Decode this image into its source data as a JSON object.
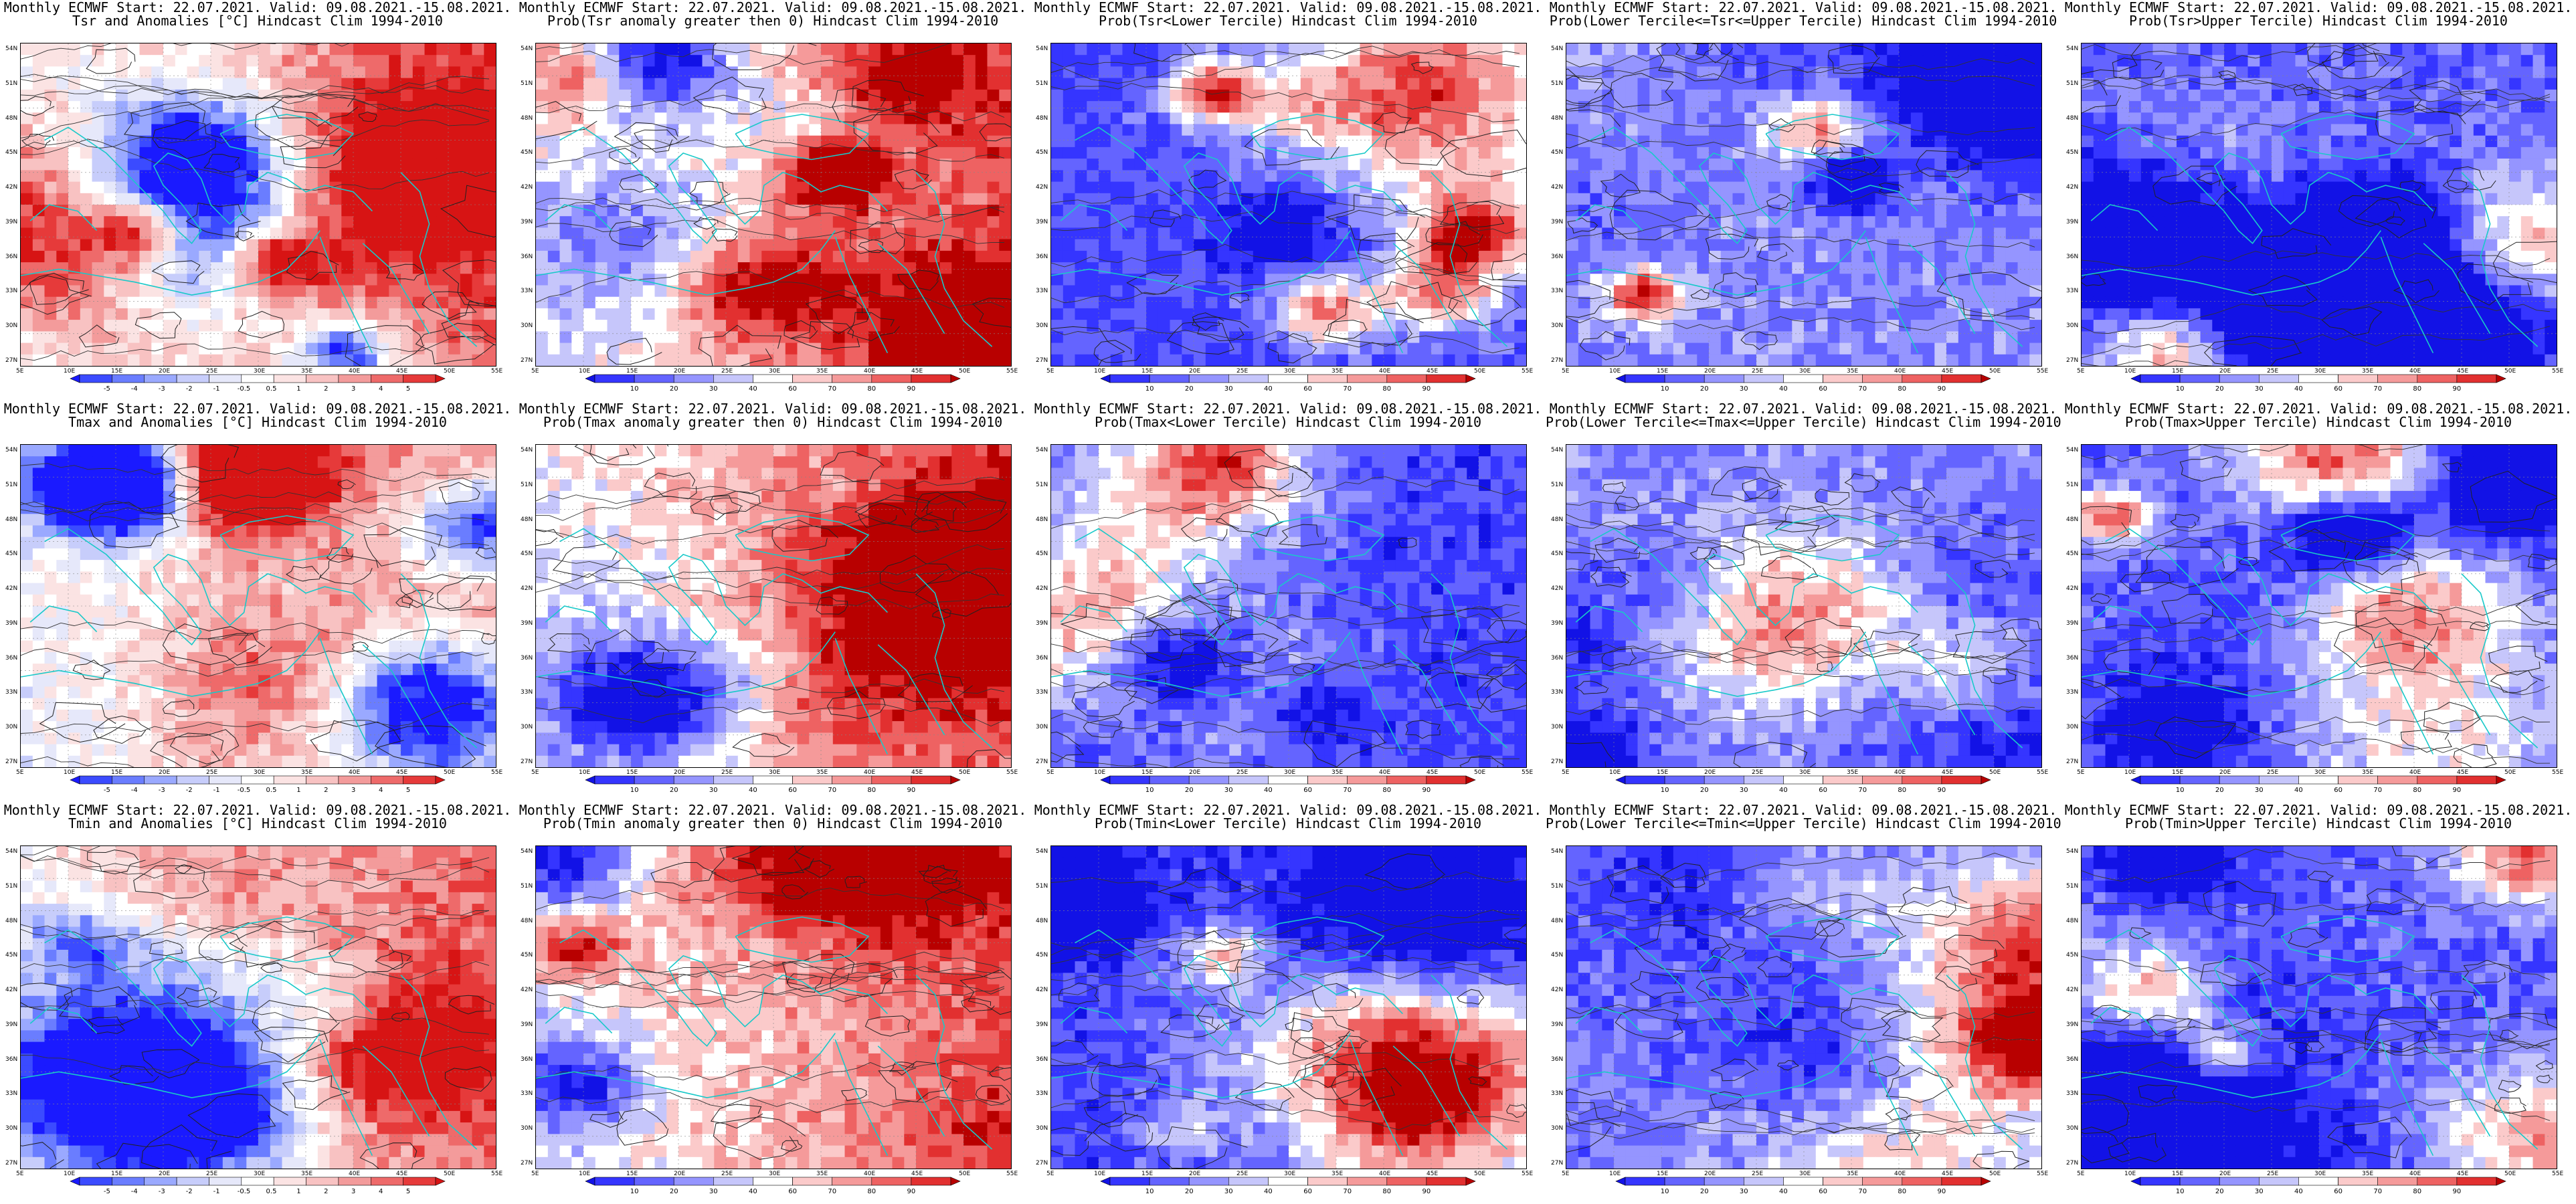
{
  "palettes": {
    "anomaly": [
      "#1a1aff",
      "#3b4bff",
      "#6a7dff",
      "#9aa9ff",
      "#c7cdfb",
      "#e6e8fa",
      "#ffffff",
      "#fbe3e3",
      "#f8c2c2",
      "#f39b9b",
      "#ee6a6a",
      "#e63a3a",
      "#d71414"
    ],
    "probability": [
      "#1212e6",
      "#3535ff",
      "#6464ff",
      "#9595ff",
      "#c6c6fb",
      "#ffffff",
      "#fbcaca",
      "#f59a9a",
      "#ee6262",
      "#e23030",
      "#b80000"
    ]
  },
  "axes": {
    "lat_ticks": [
      "54N",
      "51N",
      "48N",
      "45N",
      "42N",
      "39N",
      "36N",
      "33N",
      "30N",
      "27N"
    ],
    "lon_ticks": [
      "5E",
      "10E",
      "15E",
      "20E",
      "25E",
      "30E",
      "35E",
      "40E",
      "45E",
      "50E",
      "55E"
    ]
  },
  "colorbars": {
    "anomaly_labels": [
      "-5",
      "-4",
      "-3",
      "-2",
      "-1",
      "-0.5",
      "0.5",
      "1",
      "2",
      "3",
      "4",
      "5"
    ],
    "probability_labels": [
      "10",
      "20",
      "30",
      "40",
      "60",
      "70",
      "80",
      "90"
    ]
  },
  "panels": [
    {
      "title1": "Monthly ECMWF Start: 22.07.2021. Valid: 09.08.2021.-15.08.2021.",
      "title2": "Tsr and Anomalies [°C] Hindcast Clim 1994-2010",
      "kind": "anomaly"
    },
    {
      "title1": "Monthly ECMWF Start: 22.07.2021. Valid: 09.08.2021.-15.08.2021.",
      "title2": "Prob(Tsr anomaly greater then 0) Hindcast Clim 1994-2010",
      "kind": "probability"
    },
    {
      "title1": "Monthly ECMWF Start: 22.07.2021. Valid: 09.08.2021.-15.08.2021.",
      "title2": "Prob(Tsr<Lower Tercile) Hindcast Clim 1994-2010",
      "kind": "probability"
    },
    {
      "title1": "Monthly ECMWF Start: 22.07.2021. Valid: 09.08.2021.-15.08.2021.",
      "title2": "Prob(Lower Tercile<=Tsr<=Upper Tercile) Hindcast Clim 1994-2010",
      "kind": "probability"
    },
    {
      "title1": "Monthly ECMWF Start: 22.07.2021. Valid: 09.08.2021.-15.08.2021.",
      "title2": "Prob(Tsr>Upper Tercile) Hindcast Clim 1994-2010",
      "kind": "probability"
    },
    {
      "title1": "Monthly ECMWF Start: 22.07.2021. Valid: 09.08.2021.-15.08.2021.",
      "title2": "Tmax and Anomalies [°C] Hindcast Clim 1994-2010",
      "kind": "anomaly"
    },
    {
      "title1": "Monthly ECMWF Start: 22.07.2021. Valid: 09.08.2021.-15.08.2021.",
      "title2": "Prob(Tmax anomaly greater then 0) Hindcast Clim 1994-2010",
      "kind": "probability"
    },
    {
      "title1": "Monthly ECMWF Start: 22.07.2021. Valid: 09.08.2021.-15.08.2021.",
      "title2": "Prob(Tmax<Lower Tercile) Hindcast Clim 1994-2010",
      "kind": "probability"
    },
    {
      "title1": "Monthly ECMWF Start: 22.07.2021. Valid: 09.08.2021.-15.08.2021.",
      "title2": "Prob(Lower Tercile<=Tmax<=Upper Tercile) Hindcast Clim 1994-2010",
      "kind": "probability"
    },
    {
      "title1": "Monthly ECMWF Start: 22.07.2021. Valid: 09.08.2021.-15.08.2021.",
      "title2": "Prob(Tmax>Upper Tercile) Hindcast Clim 1994-2010",
      "kind": "probability"
    },
    {
      "title1": "Monthly ECMWF Start: 22.07.2021. Valid: 09.08.2021.-15.08.2021.",
      "title2": "Tmin and Anomalies [°C] Hindcast Clim 1994-2010",
      "kind": "anomaly"
    },
    {
      "title1": "Monthly ECMWF Start: 22.07.2021. Valid: 09.08.2021.-15.08.2021.",
      "title2": "Prob(Tmin anomaly greater then 0) Hindcast Clim 1994-2010",
      "kind": "probability"
    },
    {
      "title1": "Monthly ECMWF Start: 22.07.2021. Valid: 09.08.2021.-15.08.2021.",
      "title2": "Prob(Tmin<Lower Tercile) Hindcast Clim 1994-2010",
      "kind": "probability"
    },
    {
      "title1": "Monthly ECMWF Start: 22.07.2021. Valid: 09.08.2021.-15.08.2021.",
      "title2": "Prob(Lower Tercile<=Tmin<=Upper Tercile) Hindcast Clim 1994-2010",
      "kind": "probability"
    },
    {
      "title1": "Monthly ECMWF Start: 22.07.2021. Valid: 09.08.2021.-15.08.2021.",
      "title2": "Prob(Tmin>Upper Tercile) Hindcast Clim 1994-2010",
      "kind": "probability"
    }
  ]
}
